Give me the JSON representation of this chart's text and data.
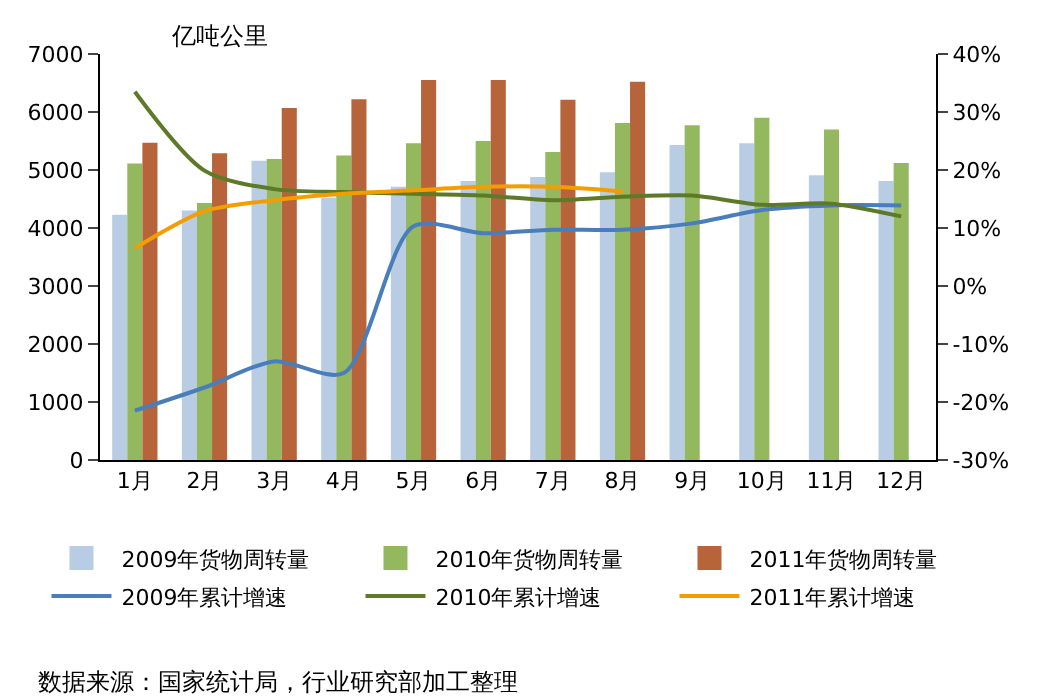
{
  "chart_data": {
    "type": "bar",
    "ylabel": "亿吨公里",
    "categories": [
      "1月",
      "2月",
      "3月",
      "4月",
      "5月",
      "6月",
      "7月",
      "8月",
      "9月",
      "10月",
      "11月",
      "12月"
    ],
    "series": [
      {
        "name": "2009年货物周转量",
        "color": "#b8cce4",
        "values": [
          4230,
          4300,
          5160,
          4520,
          4710,
          4810,
          4880,
          4960,
          5430,
          5460,
          4910,
          4810
        ]
      },
      {
        "name": "2010年货物周转量",
        "color": "#93b85e",
        "values": [
          5110,
          4430,
          5190,
          5250,
          5460,
          5500,
          5310,
          5810,
          5770,
          5900,
          5700,
          5120
        ]
      },
      {
        "name": "2011年货物周转量",
        "color": "#b8643a",
        "values": [
          5470,
          5290,
          6070,
          6220,
          6550,
          6550,
          6210,
          6520,
          null,
          null,
          null,
          null
        ]
      },
      {
        "name": "2009年累计增速",
        "type": "line",
        "axis": "y2",
        "color": "#4a7ebb",
        "values": [
          -21.5,
          -17.5,
          -13,
          -15,
          10.3,
          9.1,
          9.7,
          9.7,
          10.8,
          13.1,
          13.9,
          13.9
        ]
      },
      {
        "name": "2010年累计增速",
        "type": "line",
        "axis": "y2",
        "color": "#5e7a28",
        "values": [
          33.5,
          19.9,
          16.7,
          16.2,
          15.9,
          15.6,
          14.8,
          15.4,
          15.6,
          14,
          14.2,
          12
        ]
      },
      {
        "name": "2011年累计增速",
        "type": "line",
        "axis": "y2",
        "color": "#f59d00",
        "values": [
          6.5,
          12.9,
          14.8,
          15.9,
          16.5,
          17.1,
          17.1,
          16.3,
          null,
          null,
          null,
          null
        ]
      }
    ],
    "ylim": [
      0,
      7000
    ],
    "yticks": [
      0,
      1000,
      2000,
      3000,
      4000,
      5000,
      6000,
      7000
    ],
    "y2lim": [
      -30,
      40
    ],
    "y2ticks": [
      {
        "value": -30,
        "label": "-30%"
      },
      {
        "value": -20,
        "label": "-20%"
      },
      {
        "value": -10,
        "label": "-10%"
      },
      {
        "value": 0,
        "label": "0%"
      },
      {
        "value": 10,
        "label": "10%"
      },
      {
        "value": 20,
        "label": "20%"
      },
      {
        "value": 30,
        "label": "30%"
      },
      {
        "value": 40,
        "label": "40%"
      }
    ],
    "legend": "bottom",
    "marker": "none",
    "line_style": "solid",
    "annotations": [
      "数据来源：国家统计局，行业研究部加工整理"
    ]
  }
}
